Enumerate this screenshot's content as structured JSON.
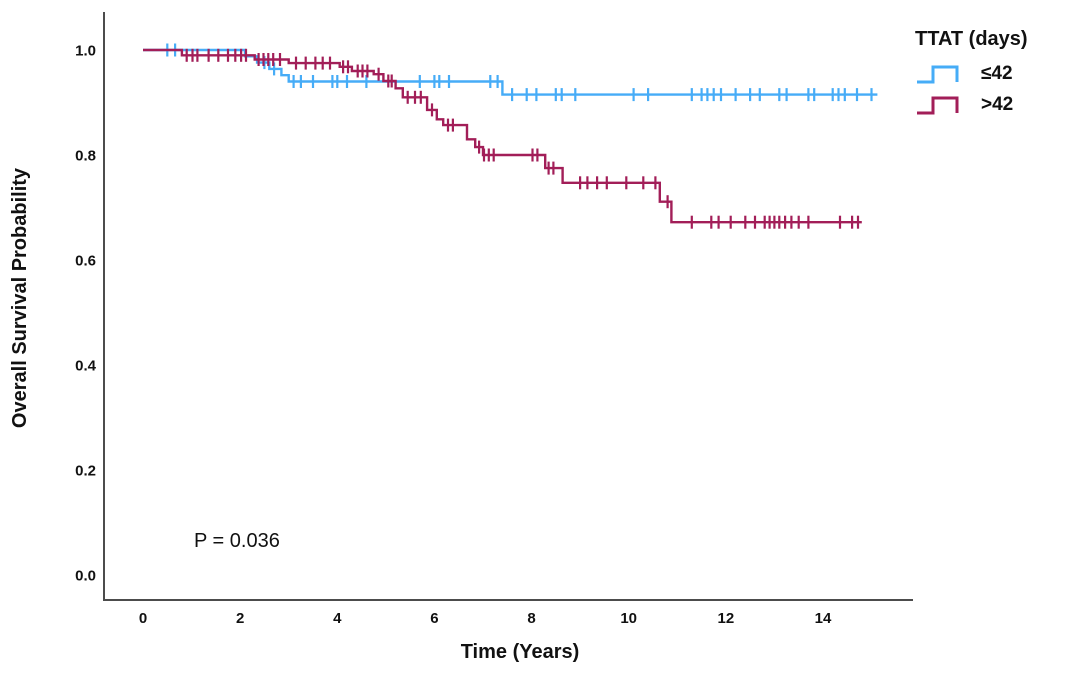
{
  "annotation": {
    "p_value": "P = 0.036"
  },
  "axes": {
    "x": {
      "label": "Time (Years)"
    },
    "y": {
      "label": "Overall Survival Probability"
    }
  },
  "legend": {
    "title": "TTAT (days)"
  },
  "chart_data": {
    "type": "line",
    "subtype": "kaplan-meier-step",
    "title": "",
    "xlabel": "Time (Years)",
    "ylabel": "Overall Survival Probability",
    "xlim": [
      -0.8,
      15.85
    ],
    "ylim": [
      0.0,
      1.05
    ],
    "grid": false,
    "legend_position": "top-right-outside",
    "legend_title": "TTAT (days)",
    "annotation": "P = 0.036",
    "x_ticks": [
      {
        "t": 0,
        "label": "0"
      },
      {
        "t": 2,
        "label": "2"
      },
      {
        "t": 4,
        "label": "4"
      },
      {
        "t": 6,
        "label": "6"
      },
      {
        "t": 8,
        "label": "8"
      },
      {
        "t": 10,
        "label": "10"
      },
      {
        "t": 12,
        "label": "12"
      },
      {
        "t": 14,
        "label": "14"
      }
    ],
    "y_ticks": [
      {
        "v": 1.0,
        "label": "1.0"
      },
      {
        "v": 0.8,
        "label": "0.8"
      },
      {
        "v": 0.6,
        "label": "0.6"
      },
      {
        "v": 0.4,
        "label": "0.4"
      },
      {
        "v": 0.2,
        "label": "0.2"
      },
      {
        "v": 0.0,
        "label": "0.0"
      }
    ],
    "series": [
      {
        "name": "≤42",
        "color": "#46ACF7",
        "end_time": 15.12,
        "steps": [
          [
            0.0,
            1.0
          ],
          [
            2.1,
            0.988
          ],
          [
            2.35,
            0.976
          ],
          [
            2.6,
            0.964
          ],
          [
            2.85,
            0.952
          ],
          [
            3.0,
            0.94
          ],
          [
            7.4,
            0.915
          ]
        ],
        "censors": [
          [
            0.5,
            1.0
          ],
          [
            0.66,
            1.0
          ],
          [
            2.5,
            0.976
          ],
          [
            2.7,
            0.964
          ],
          [
            3.1,
            0.94
          ],
          [
            3.25,
            0.94
          ],
          [
            3.5,
            0.94
          ],
          [
            3.9,
            0.94
          ],
          [
            4.0,
            0.94
          ],
          [
            4.2,
            0.94
          ],
          [
            4.6,
            0.94
          ],
          [
            5.7,
            0.94
          ],
          [
            6.0,
            0.94
          ],
          [
            6.1,
            0.94
          ],
          [
            6.3,
            0.94
          ],
          [
            7.15,
            0.94
          ],
          [
            7.3,
            0.94
          ],
          [
            7.6,
            0.915
          ],
          [
            7.9,
            0.915
          ],
          [
            8.1,
            0.915
          ],
          [
            8.5,
            0.915
          ],
          [
            8.62,
            0.915
          ],
          [
            8.9,
            0.915
          ],
          [
            10.1,
            0.915
          ],
          [
            10.4,
            0.915
          ],
          [
            11.3,
            0.915
          ],
          [
            11.5,
            0.915
          ],
          [
            11.62,
            0.915
          ],
          [
            11.75,
            0.915
          ],
          [
            11.9,
            0.915
          ],
          [
            12.2,
            0.915
          ],
          [
            12.5,
            0.915
          ],
          [
            12.7,
            0.915
          ],
          [
            13.1,
            0.915
          ],
          [
            13.25,
            0.915
          ],
          [
            13.7,
            0.915
          ],
          [
            13.82,
            0.915
          ],
          [
            14.2,
            0.915
          ],
          [
            14.32,
            0.915
          ],
          [
            14.45,
            0.915
          ],
          [
            14.7,
            0.915
          ],
          [
            15.0,
            0.915
          ]
        ]
      },
      {
        "name": ">42",
        "color": "#A21E58",
        "end_time": 14.8,
        "steps": [
          [
            0.0,
            1.0
          ],
          [
            0.8,
            0.99
          ],
          [
            2.3,
            0.982
          ],
          [
            3.0,
            0.975
          ],
          [
            4.05,
            0.968
          ],
          [
            4.3,
            0.96
          ],
          [
            4.75,
            0.954
          ],
          [
            4.95,
            0.941
          ],
          [
            5.2,
            0.927
          ],
          [
            5.35,
            0.91
          ],
          [
            5.85,
            0.886
          ],
          [
            6.05,
            0.868
          ],
          [
            6.18,
            0.857
          ],
          [
            6.67,
            0.83
          ],
          [
            6.84,
            0.815
          ],
          [
            7.0,
            0.8
          ],
          [
            8.28,
            0.775
          ],
          [
            8.64,
            0.747
          ],
          [
            10.64,
            0.711
          ],
          [
            10.88,
            0.672
          ]
        ],
        "censors": [
          [
            0.9,
            0.99
          ],
          [
            1.02,
            0.99
          ],
          [
            1.12,
            0.99
          ],
          [
            1.35,
            0.99
          ],
          [
            1.55,
            0.99
          ],
          [
            1.75,
            0.99
          ],
          [
            1.9,
            0.99
          ],
          [
            2.02,
            0.99
          ],
          [
            2.12,
            0.99
          ],
          [
            2.38,
            0.982
          ],
          [
            2.48,
            0.982
          ],
          [
            2.58,
            0.982
          ],
          [
            2.68,
            0.982
          ],
          [
            2.82,
            0.982
          ],
          [
            3.15,
            0.975
          ],
          [
            3.35,
            0.975
          ],
          [
            3.55,
            0.975
          ],
          [
            3.7,
            0.975
          ],
          [
            3.85,
            0.975
          ],
          [
            4.12,
            0.968
          ],
          [
            4.22,
            0.968
          ],
          [
            4.42,
            0.96
          ],
          [
            4.52,
            0.96
          ],
          [
            4.62,
            0.96
          ],
          [
            4.85,
            0.954
          ],
          [
            5.05,
            0.941
          ],
          [
            5.12,
            0.941
          ],
          [
            5.45,
            0.91
          ],
          [
            5.6,
            0.91
          ],
          [
            5.72,
            0.91
          ],
          [
            5.95,
            0.886
          ],
          [
            6.28,
            0.857
          ],
          [
            6.38,
            0.857
          ],
          [
            6.92,
            0.815
          ],
          [
            7.02,
            0.8
          ],
          [
            7.12,
            0.8
          ],
          [
            7.22,
            0.8
          ],
          [
            8.02,
            0.8
          ],
          [
            8.12,
            0.8
          ],
          [
            8.35,
            0.775
          ],
          [
            8.45,
            0.775
          ],
          [
            9.0,
            0.747
          ],
          [
            9.15,
            0.747
          ],
          [
            9.35,
            0.747
          ],
          [
            9.55,
            0.747
          ],
          [
            9.95,
            0.747
          ],
          [
            10.3,
            0.747
          ],
          [
            10.55,
            0.747
          ],
          [
            10.8,
            0.711
          ],
          [
            11.3,
            0.672
          ],
          [
            11.7,
            0.672
          ],
          [
            11.85,
            0.672
          ],
          [
            12.1,
            0.672
          ],
          [
            12.4,
            0.672
          ],
          [
            12.6,
            0.672
          ],
          [
            12.8,
            0.672
          ],
          [
            12.9,
            0.672
          ],
          [
            13.0,
            0.672
          ],
          [
            13.1,
            0.672
          ],
          [
            13.22,
            0.672
          ],
          [
            13.35,
            0.672
          ],
          [
            13.5,
            0.672
          ],
          [
            13.7,
            0.672
          ],
          [
            14.35,
            0.672
          ],
          [
            14.6,
            0.672
          ],
          [
            14.72,
            0.672
          ]
        ]
      }
    ]
  }
}
